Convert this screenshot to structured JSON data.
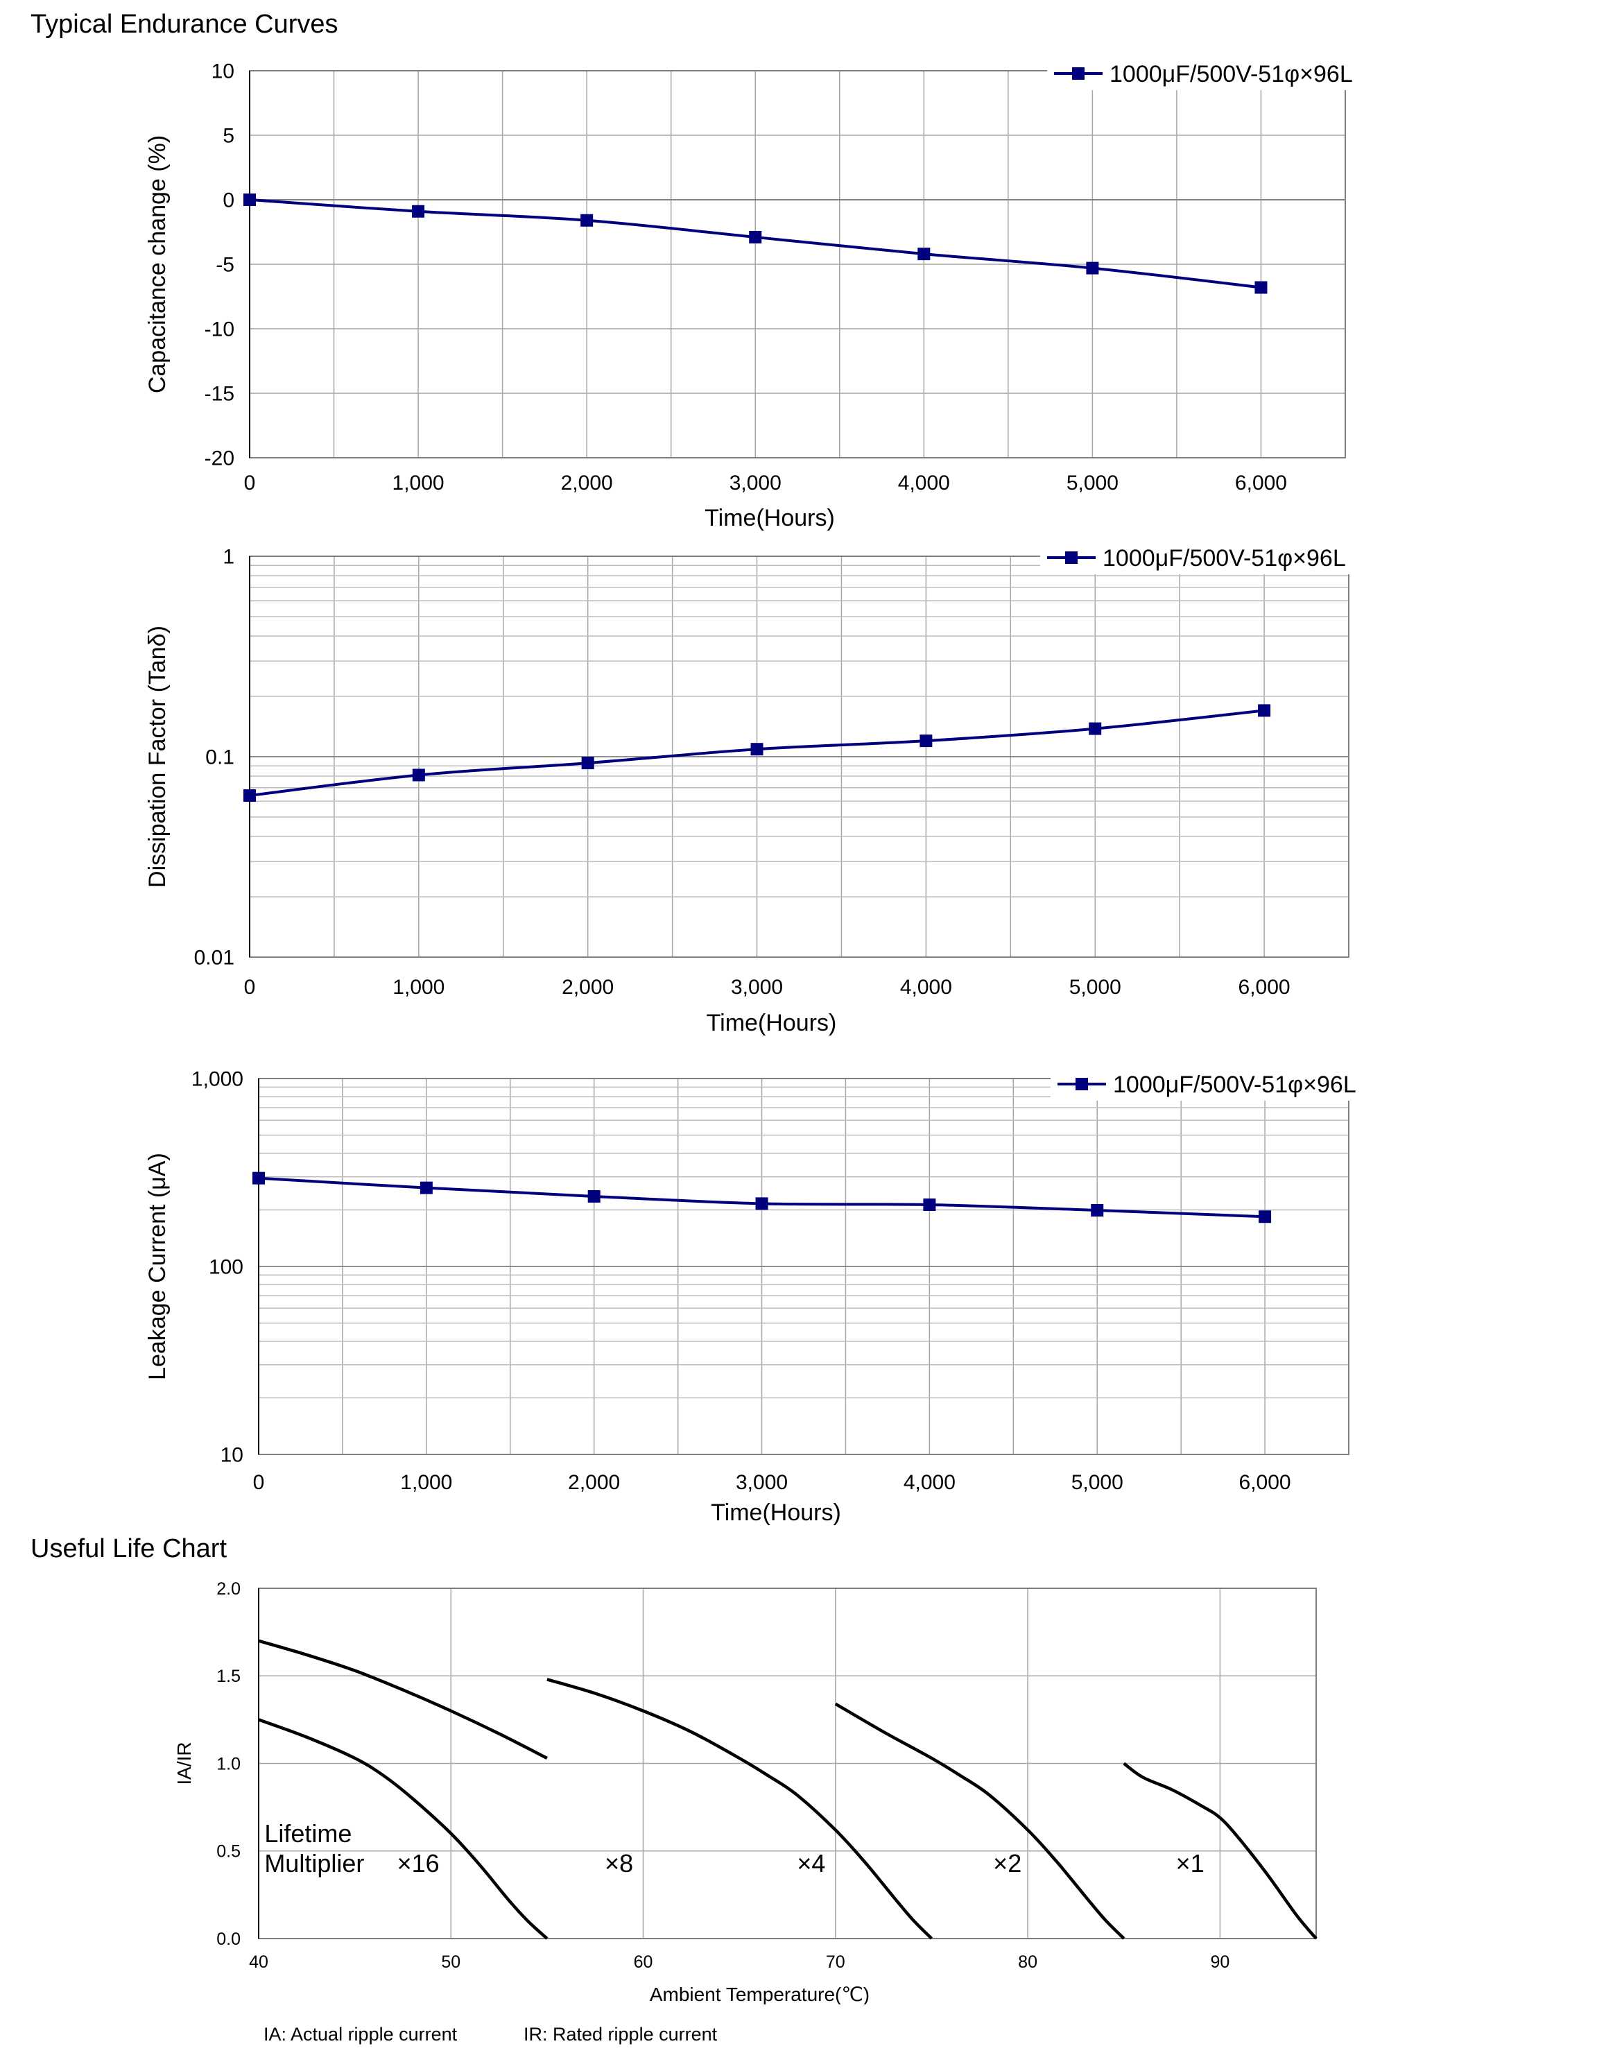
{
  "page": {
    "title": "Typical Endurance Curves",
    "title2": "Useful Life Chart",
    "note_ia": "IA: Actual ripple current",
    "note_ir": "IR: Rated ripple current"
  },
  "chart_data": [
    {
      "type": "line",
      "xlabel": "Time(Hours)",
      "ylabel": "Capacitance change (%)",
      "xlim": [
        0,
        6500
      ],
      "ylim": [
        -20,
        10
      ],
      "xticks": [
        0,
        1000,
        2000,
        3000,
        4000,
        5000,
        6000
      ],
      "xtick_labels": [
        "0",
        "1,000",
        "2,000",
        "3,000",
        "4,000",
        "5,000",
        "6,000"
      ],
      "yticks": [
        -20,
        -15,
        -10,
        -5,
        0,
        5,
        10
      ],
      "ytick_labels": [
        "-20",
        "-15",
        "-10",
        "-5",
        "0",
        "5",
        "10"
      ],
      "grid": true,
      "legend": "top-right",
      "series": [
        {
          "name": "1000μF/500V-51φ×96L",
          "color": "#00007f",
          "marker": "square",
          "x": [
            0,
            1000,
            2000,
            3000,
            4000,
            5000,
            6000
          ],
          "y": [
            0,
            -0.9,
            -1.6,
            -2.9,
            -4.2,
            -5.3,
            -6.8
          ]
        }
      ]
    },
    {
      "type": "line",
      "xlabel": "Time(Hours)",
      "ylabel": "Dissipation Factor (Tanδ)",
      "xlim": [
        0,
        6500
      ],
      "ylim": [
        0.01,
        1
      ],
      "yscale": "log",
      "xticks": [
        0,
        1000,
        2000,
        3000,
        4000,
        5000,
        6000
      ],
      "xtick_labels": [
        "0",
        "1,000",
        "2,000",
        "3,000",
        "4,000",
        "5,000",
        "6,000"
      ],
      "yticks": [
        0.01,
        0.1,
        1
      ],
      "ytick_labels": [
        "0.01",
        "0.1",
        "1"
      ],
      "grid": true,
      "legend": "top-right",
      "series": [
        {
          "name": "1000μF/500V-51φ×96L",
          "color": "#00007f",
          "marker": "square",
          "x": [
            0,
            1000,
            2000,
            3000,
            4000,
            5000,
            6000
          ],
          "y": [
            0.064,
            0.081,
            0.093,
            0.109,
            0.12,
            0.138,
            0.17
          ]
        }
      ]
    },
    {
      "type": "line",
      "xlabel": "Time(Hours)",
      "ylabel": "Leakage Current (μA)",
      "xlim": [
        0,
        6500
      ],
      "ylim": [
        10,
        1000
      ],
      "yscale": "log",
      "xticks": [
        0,
        1000,
        2000,
        3000,
        4000,
        5000,
        6000
      ],
      "xtick_labels": [
        "0",
        "1,000",
        "2,000",
        "3,000",
        "4,000",
        "5,000",
        "6,000"
      ],
      "yticks": [
        10,
        100,
        1000
      ],
      "ytick_labels": [
        "10",
        "100",
        "1,000"
      ],
      "grid": true,
      "legend": "top-right",
      "series": [
        {
          "name": "1000μF/500V-51φ×96L",
          "color": "#00007f",
          "marker": "square",
          "x": [
            0,
            1000,
            2000,
            3000,
            4000,
            5000,
            6000
          ],
          "y": [
            295,
            262,
            236,
            216,
            213,
            199,
            184
          ]
        }
      ]
    },
    {
      "type": "line",
      "xlabel": "Ambient Temperature(℃)",
      "ylabel": "IA/IR",
      "xlim": [
        40,
        95
      ],
      "ylim": [
        0,
        2
      ],
      "xticks": [
        40,
        50,
        60,
        70,
        80,
        90
      ],
      "xtick_labels": [
        "40",
        "50",
        "60",
        "70",
        "80",
        "90"
      ],
      "yticks": [
        0,
        0.5,
        1,
        1.5,
        2
      ],
      "ytick_labels": [
        "0.0",
        "0.5",
        "1.0",
        "1.5",
        "2.0"
      ],
      "grid": true,
      "annotations": [
        {
          "text": "Lifetime",
          "x": 40.3,
          "y": 0.55
        },
        {
          "text": "Multiplier",
          "x": 40.3,
          "y": 0.38
        },
        {
          "text": "×16",
          "x": 47.2,
          "y": 0.38
        },
        {
          "text": "×8",
          "x": 58.0,
          "y": 0.38
        },
        {
          "text": "×4",
          "x": 68.0,
          "y": 0.38
        },
        {
          "text": "×2",
          "x": 78.2,
          "y": 0.38
        },
        {
          "text": "×1",
          "x": 87.7,
          "y": 0.38
        }
      ],
      "series": [
        {
          "color": "#000000",
          "x": [
            40,
            42.5,
            45,
            47.5,
            50,
            52.5,
            55
          ],
          "y": [
            1.7,
            1.62,
            1.53,
            1.42,
            1.3,
            1.17,
            1.03
          ]
        },
        {
          "color": "#000000",
          "x": [
            40,
            42.5,
            45,
            46.5,
            48,
            50,
            51.5,
            53,
            54,
            55
          ],
          "y": [
            1.25,
            1.15,
            1.03,
            0.93,
            0.8,
            0.6,
            0.42,
            0.22,
            0.1,
            0.0
          ]
        },
        {
          "color": "#000000",
          "x": [
            55,
            57.5,
            60,
            62.5,
            65,
            66.5,
            68,
            70,
            71.5,
            73,
            74,
            75
          ],
          "y": [
            1.48,
            1.4,
            1.3,
            1.18,
            1.03,
            0.93,
            0.82,
            0.62,
            0.44,
            0.24,
            0.11,
            0.0
          ]
        },
        {
          "color": "#000000",
          "x": [
            70,
            72.5,
            75,
            76.5,
            78,
            80,
            81.5,
            83,
            84,
            85
          ],
          "y": [
            1.34,
            1.18,
            1.03,
            0.93,
            0.82,
            0.62,
            0.44,
            0.24,
            0.11,
            0.0
          ]
        },
        {
          "color": "#000000",
          "x": [
            85,
            86,
            87.5,
            89,
            90,
            91,
            92.5,
            94,
            95
          ],
          "y": [
            1.0,
            0.92,
            0.85,
            0.76,
            0.69,
            0.57,
            0.36,
            0.13,
            0.0
          ]
        }
      ]
    }
  ]
}
